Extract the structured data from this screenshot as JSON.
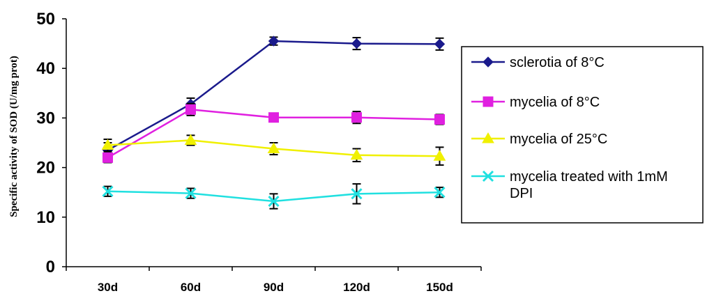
{
  "chart_data": {
    "type": "line",
    "title": "",
    "xlabel": "",
    "ylabel": "Specific activity of SOD (U/mg prot)",
    "categories": [
      "30d",
      "60d",
      "90d",
      "120d",
      "150d"
    ],
    "ylim": [
      0,
      50
    ],
    "yticks": [
      0,
      10,
      20,
      30,
      40,
      50
    ],
    "grid": false,
    "legend": "right",
    "series": [
      {
        "name": "sclerotia of 8°C",
        "color": "#1a1a8c",
        "marker": "diamond",
        "values": [
          23.5,
          32.8,
          45.5,
          45.0,
          44.9
        ],
        "errors": [
          1.5,
          1.2,
          0.8,
          1.2,
          1.2
        ]
      },
      {
        "name": "mycelia of 8°C",
        "color": "#e020e0",
        "marker": "square",
        "values": [
          22.0,
          31.7,
          30.1,
          30.1,
          29.7
        ],
        "errors": [
          1.0,
          1.2,
          0.8,
          1.2,
          1.0
        ]
      },
      {
        "name": "mycelia of 25°C",
        "color": "#f0f000",
        "marker": "triangle",
        "values": [
          24.5,
          25.5,
          23.8,
          22.5,
          22.3
        ],
        "errors": [
          1.2,
          1.0,
          1.2,
          1.3,
          1.8
        ]
      },
      {
        "name": "mycelia treated with 1mM DPI",
        "legend_lines": [
          "mycelia treated with 1mM",
          "DPI"
        ],
        "color": "#20e0e0",
        "marker": "x",
        "values": [
          15.2,
          14.8,
          13.2,
          14.7,
          15.0
        ],
        "errors": [
          1.0,
          1.0,
          1.5,
          2.0,
          1.0
        ]
      }
    ]
  }
}
